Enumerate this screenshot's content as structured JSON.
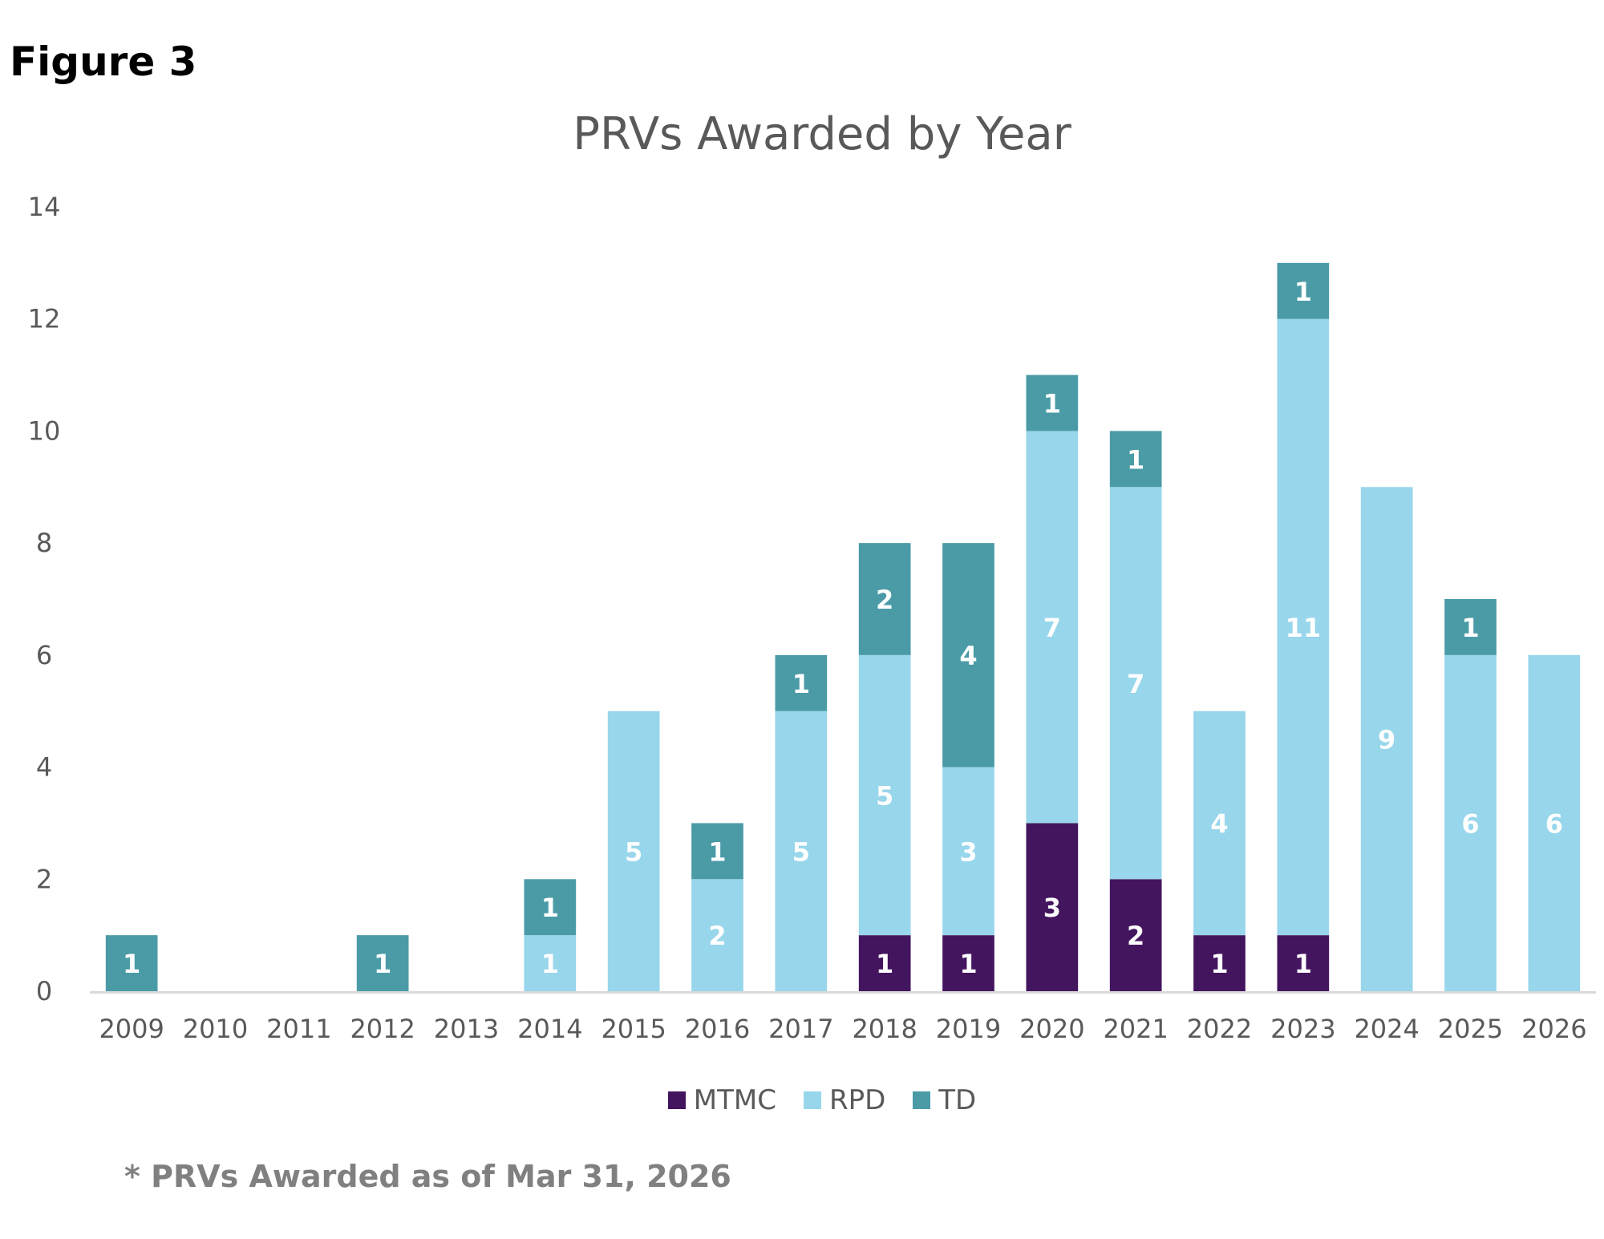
{
  "figure_label": "Figure 3",
  "footnote": "* PRVs Awarded as of Mar 31, 2026",
  "chart_data": {
    "type": "bar",
    "stacked": true,
    "title": "PRVs Awarded by Year",
    "xlabel": "",
    "ylabel": "",
    "ylim": [
      0,
      14
    ],
    "yticks": [
      0,
      2,
      4,
      6,
      8,
      10,
      12,
      14
    ],
    "grid": false,
    "legend_position": "bottom",
    "categories": [
      "2009",
      "2010",
      "2011",
      "2012",
      "2013",
      "2014",
      "2015",
      "2016",
      "2017",
      "2018",
      "2019",
      "2020",
      "2021",
      "2022",
      "2023",
      "2024",
      "2025",
      "2026"
    ],
    "series": [
      {
        "name": "MTMC",
        "color": "#44155f",
        "values": [
          0,
          0,
          0,
          0,
          0,
          0,
          0,
          0,
          0,
          1,
          1,
          3,
          2,
          1,
          1,
          0,
          0,
          0
        ]
      },
      {
        "name": "RPD",
        "color": "#98d6eb",
        "values": [
          0,
          0,
          0,
          0,
          0,
          1,
          5,
          2,
          5,
          5,
          3,
          7,
          7,
          4,
          11,
          9,
          6,
          6
        ]
      },
      {
        "name": "TD",
        "color": "#4a9ba6",
        "values": [
          1,
          0,
          0,
          1,
          0,
          1,
          0,
          1,
          1,
          2,
          4,
          1,
          1,
          0,
          1,
          0,
          1,
          0
        ]
      }
    ]
  }
}
